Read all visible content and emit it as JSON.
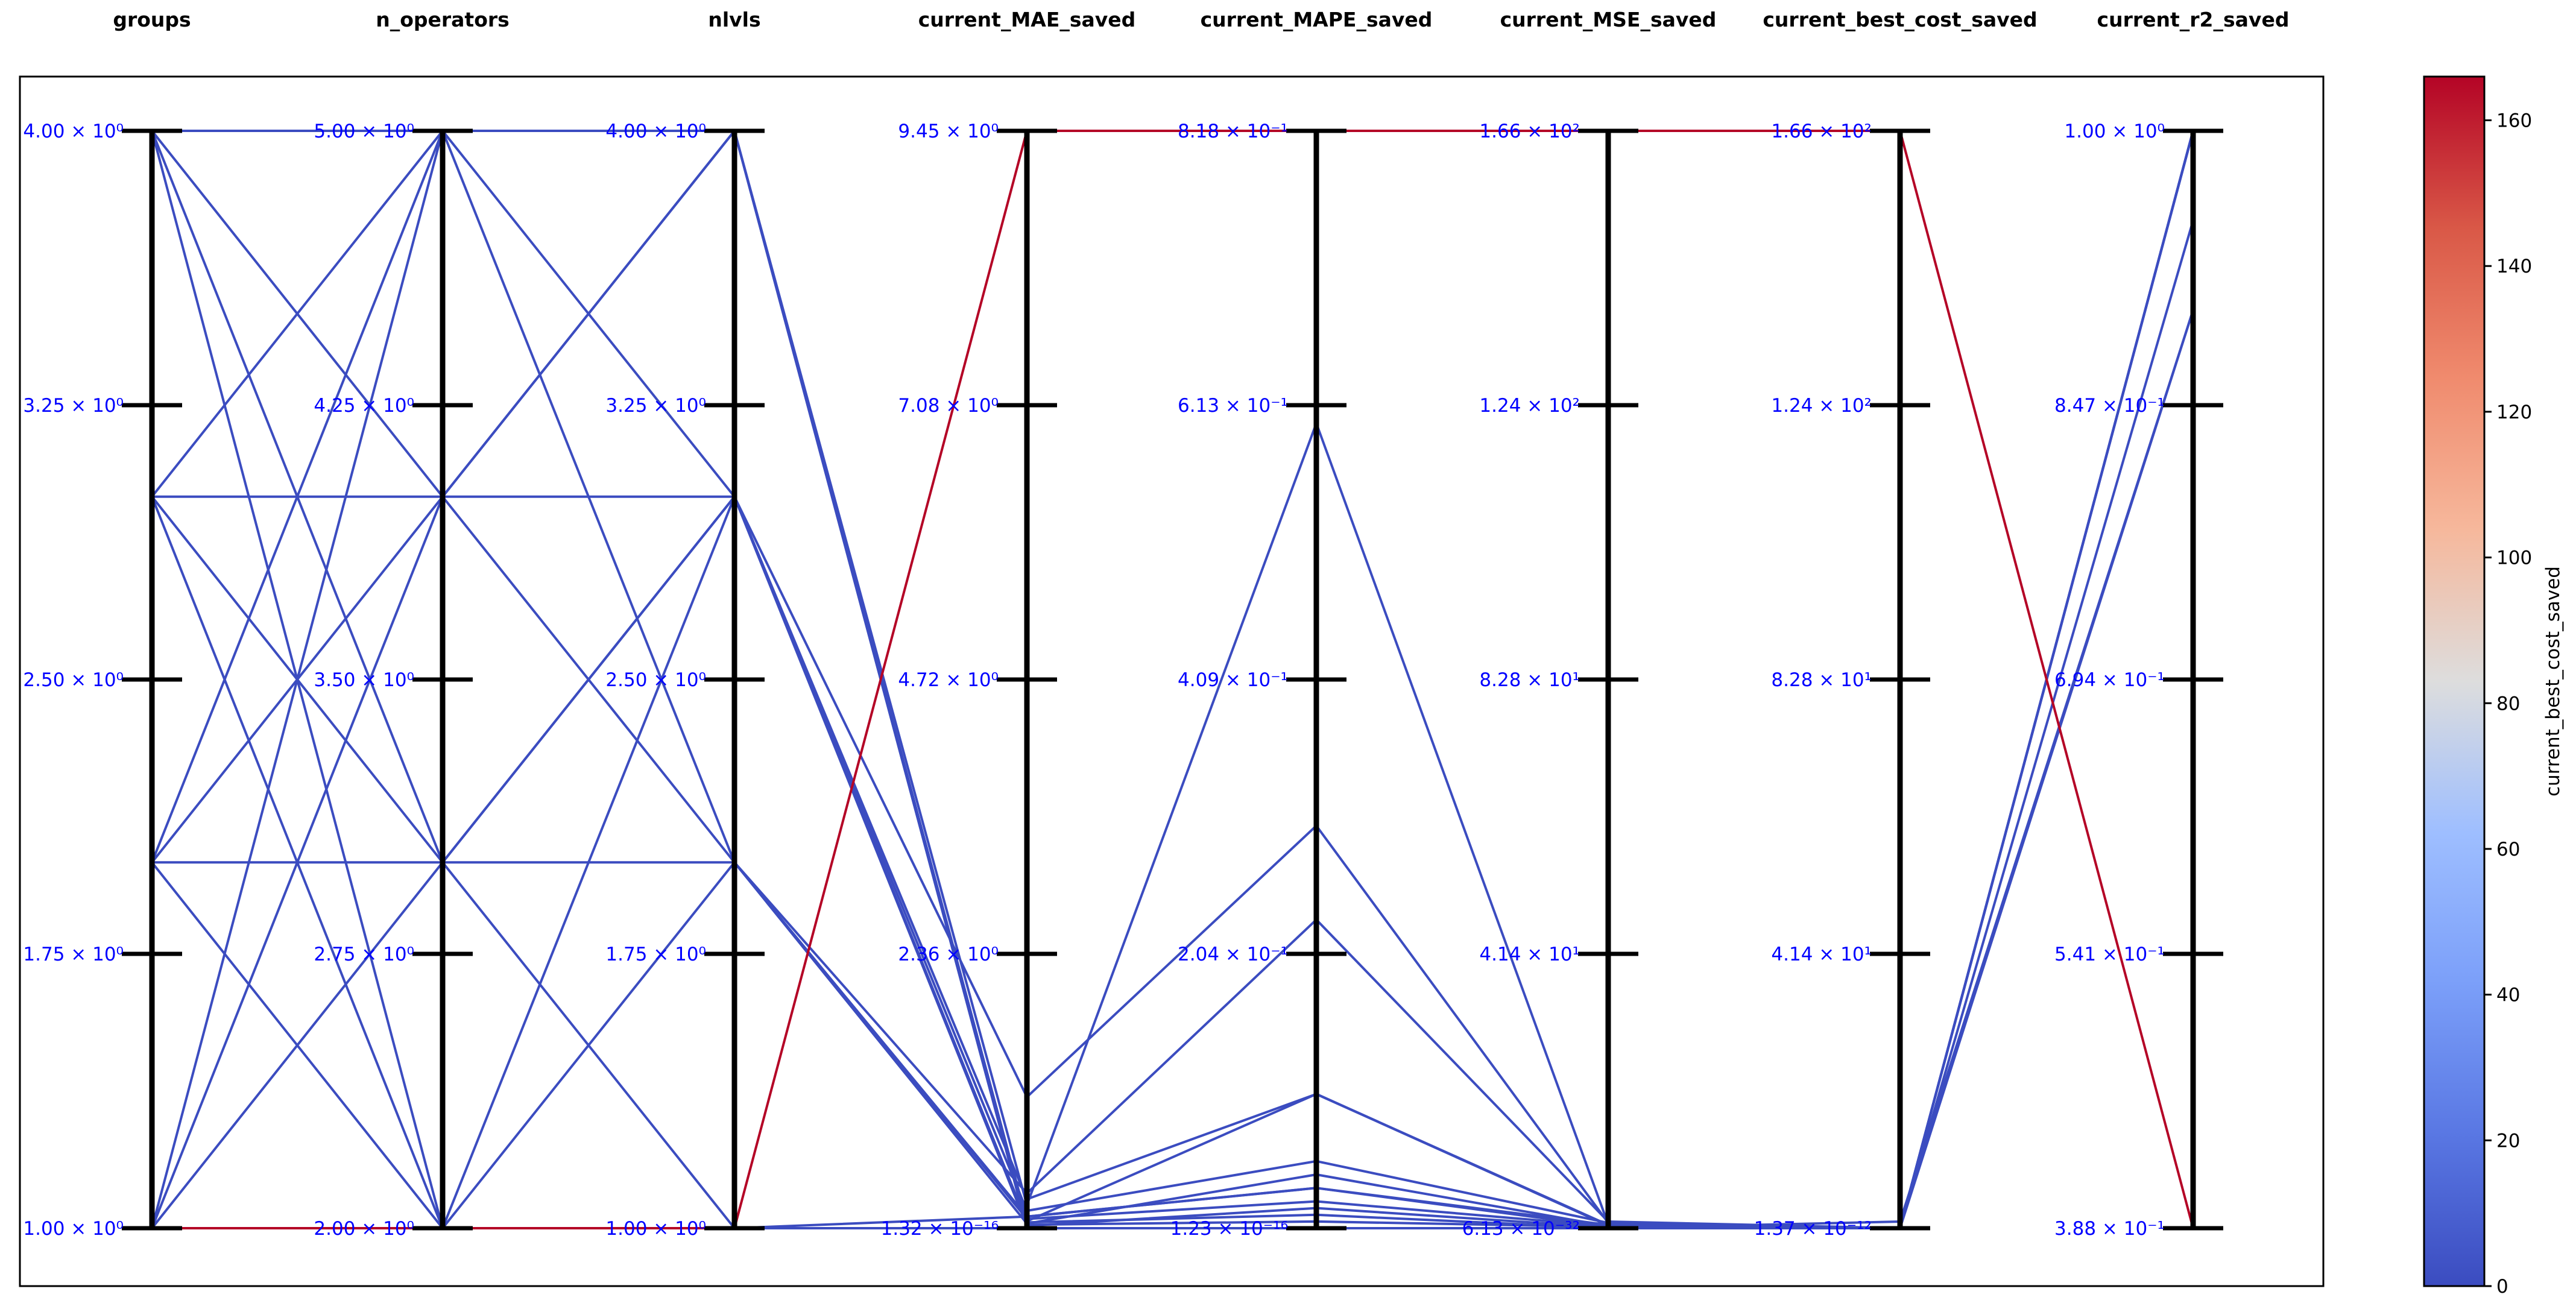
{
  "chart_data": {
    "type": "parallel_coordinates",
    "axes": [
      {
        "name": "groups",
        "ticks": [
          "1.00 × 10⁰",
          "1.75 × 10⁰",
          "2.50 × 10⁰",
          "3.25 × 10⁰",
          "4.00 × 10⁰"
        ]
      },
      {
        "name": "n_operators",
        "ticks": [
          "2.00 × 10⁰",
          "2.75 × 10⁰",
          "3.50 × 10⁰",
          "4.25 × 10⁰",
          "5.00 × 10⁰"
        ]
      },
      {
        "name": "nlvls",
        "ticks": [
          "1.00 × 10⁰",
          "1.75 × 10⁰",
          "2.50 × 10⁰",
          "3.25 × 10⁰",
          "4.00 × 10⁰"
        ]
      },
      {
        "name": "current_MAE_saved",
        "ticks": [
          "1.32 × 10⁻¹⁶",
          "2.36 × 10⁰",
          "4.72 × 10⁰",
          "7.08 × 10⁰",
          "9.45 × 10⁰"
        ]
      },
      {
        "name": "current_MAPE_saved",
        "ticks": [
          "1.23 × 10⁻¹⁶",
          "2.04 × 10⁻¹",
          "4.09 × 10⁻¹",
          "6.13 × 10⁻¹",
          "8.18 × 10⁻¹"
        ]
      },
      {
        "name": "current_MSE_saved",
        "ticks": [
          "6.13 × 10⁻³²",
          "4.14 × 10¹",
          "8.28 × 10¹",
          "1.24 × 10²",
          "1.66 × 10²"
        ]
      },
      {
        "name": "current_best_cost_saved",
        "ticks": [
          "1.37 × 10⁻¹²",
          "4.14 × 10¹",
          "8.28 × 10¹",
          "1.24 × 10²",
          "1.66 × 10²"
        ]
      },
      {
        "name": "current_r2_saved",
        "ticks": [
          "3.88 × 10⁻¹",
          "5.41 × 10⁻¹",
          "6.94 × 10⁻¹",
          "8.47 × 10⁻¹",
          "1.00 × 10⁰"
        ]
      }
    ],
    "lines": [
      {
        "values": [
          1,
          2,
          1,
          9.45,
          0.818,
          166,
          166,
          0.388
        ],
        "color_value": 166
      },
      {
        "values": [
          4,
          5,
          4,
          0.0,
          0.0,
          0,
          0,
          1.0
        ],
        "color_value": 0
      },
      {
        "values": [
          4,
          4,
          3,
          0.05,
          0.01,
          0,
          0,
          1.0
        ],
        "color_value": 0
      },
      {
        "values": [
          4,
          3,
          2,
          0.08,
          0.02,
          0.3,
          0,
          1.0
        ],
        "color_value": 0
      },
      {
        "values": [
          4,
          2,
          1,
          0.1,
          0.03,
          0.5,
          0,
          1.0
        ],
        "color_value": 0
      },
      {
        "values": [
          3,
          5,
          3,
          0.15,
          0.05,
          0.8,
          0,
          1.0
        ],
        "color_value": 0
      },
      {
        "values": [
          3,
          4,
          4,
          0.2,
          0.6,
          0.6,
          0,
          1.0
        ],
        "color_value": 0
      },
      {
        "values": [
          3,
          3,
          3,
          0.25,
          0.1,
          0.5,
          0,
          1.0
        ],
        "color_value": 0
      },
      {
        "values": [
          3,
          2,
          2,
          0.04,
          0.04,
          0.3,
          0,
          0.95
        ],
        "color_value": 0
      },
      {
        "values": [
          2,
          5,
          2,
          0.3,
          0.23,
          1.0,
          0,
          0.9
        ],
        "color_value": 0
      },
      {
        "values": [
          2,
          4,
          4,
          0.03,
          0.005,
          0.2,
          0,
          1.0
        ],
        "color_value": 0
      },
      {
        "values": [
          2,
          3,
          1,
          0.0,
          0.0,
          0,
          0,
          1.0
        ],
        "color_value": 0
      },
      {
        "values": [
          2,
          2,
          3,
          0.02,
          0.015,
          0.1,
          0,
          1.0
        ],
        "color_value": 0
      },
      {
        "values": [
          1,
          5,
          4,
          0.06,
          0.1,
          0.4,
          0,
          1.0
        ],
        "color_value": 0
      },
      {
        "values": [
          1,
          4,
          2,
          0.1,
          0.03,
          0.2,
          0,
          1.0
        ],
        "color_value": 0
      },
      {
        "values": [
          1,
          3,
          3,
          1.13,
          0.3,
          0.8,
          0,
          1.0
        ],
        "color_value": 0
      },
      {
        "values": [
          1,
          2,
          1,
          0.0,
          0.0,
          0,
          1.0,
          0.9
        ],
        "color_value": 0
      }
    ],
    "colorbar": {
      "label": "current_best_cost_saved",
      "ticks": [
        0,
        20,
        40,
        60,
        80,
        100,
        120,
        140,
        160
      ],
      "min": 0,
      "max": 166,
      "colormap": "coolwarm"
    },
    "colors": {
      "low": "#3b4cc0",
      "high": "#b40426",
      "tick_text": "#0000ff"
    }
  }
}
